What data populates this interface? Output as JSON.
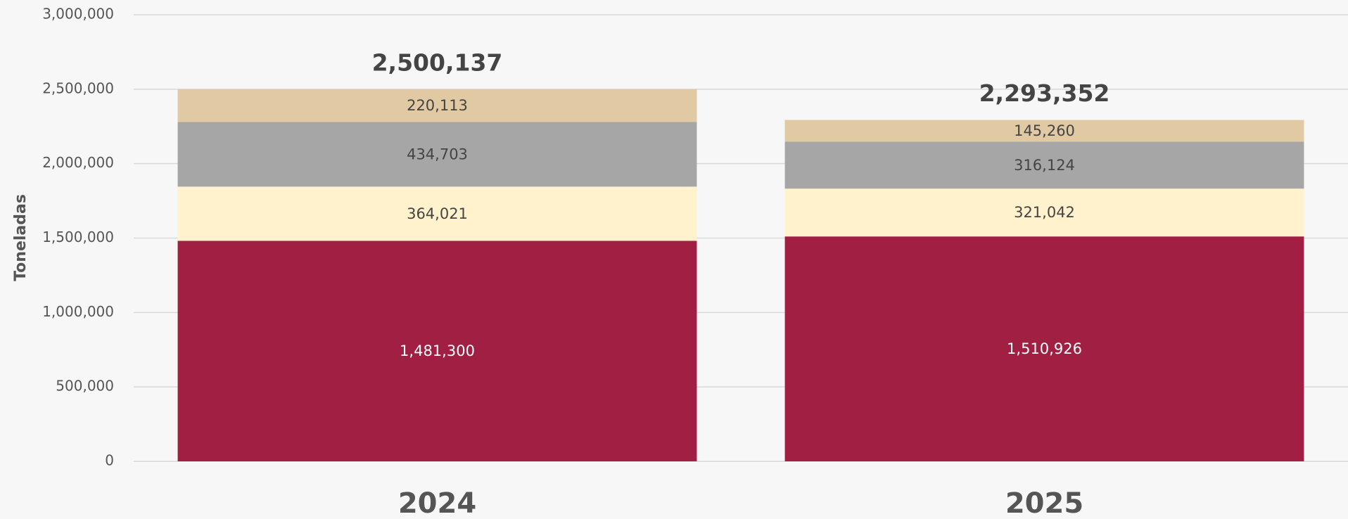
{
  "chart_data": {
    "type": "stacked_bar",
    "y_axis_label": "Toneladas",
    "categories": [
      "2024",
      "2025"
    ],
    "series": [
      {
        "color": "#a01f42",
        "values": [
          1481300,
          1510926
        ],
        "value_labels": [
          "1,481,300",
          "1,510,926"
        ]
      },
      {
        "color": "#fff2cc",
        "values": [
          364021,
          321042
        ],
        "value_labels": [
          "364,021",
          "321,042"
        ]
      },
      {
        "color": "#a6a6a6",
        "values": [
          434703,
          316124
        ],
        "value_labels": [
          "434,703",
          "316,124"
        ]
      },
      {
        "color": "#e0c9a3",
        "values": [
          220113,
          145260
        ],
        "value_labels": [
          "220,113",
          "145,260"
        ]
      }
    ],
    "totals": [
      2500137,
      2293352
    ],
    "total_labels": [
      "2,500,137",
      "2,293,352"
    ],
    "ylim": [
      0,
      3000000
    ],
    "yticks": [
      0,
      {
        "value": 500000,
        "label": "500,000"
      },
      {
        "value": 1000000,
        "label": "1,000,000"
      },
      {
        "value": 1500000,
        "label": "1,500,000"
      },
      {
        "value": 2000000,
        "label": "2,000,000"
      },
      {
        "value": 2500000,
        "label": "2,500,000"
      },
      {
        "value": 3000000,
        "label": "3,000,000"
      }
    ],
    "grid": true
  }
}
